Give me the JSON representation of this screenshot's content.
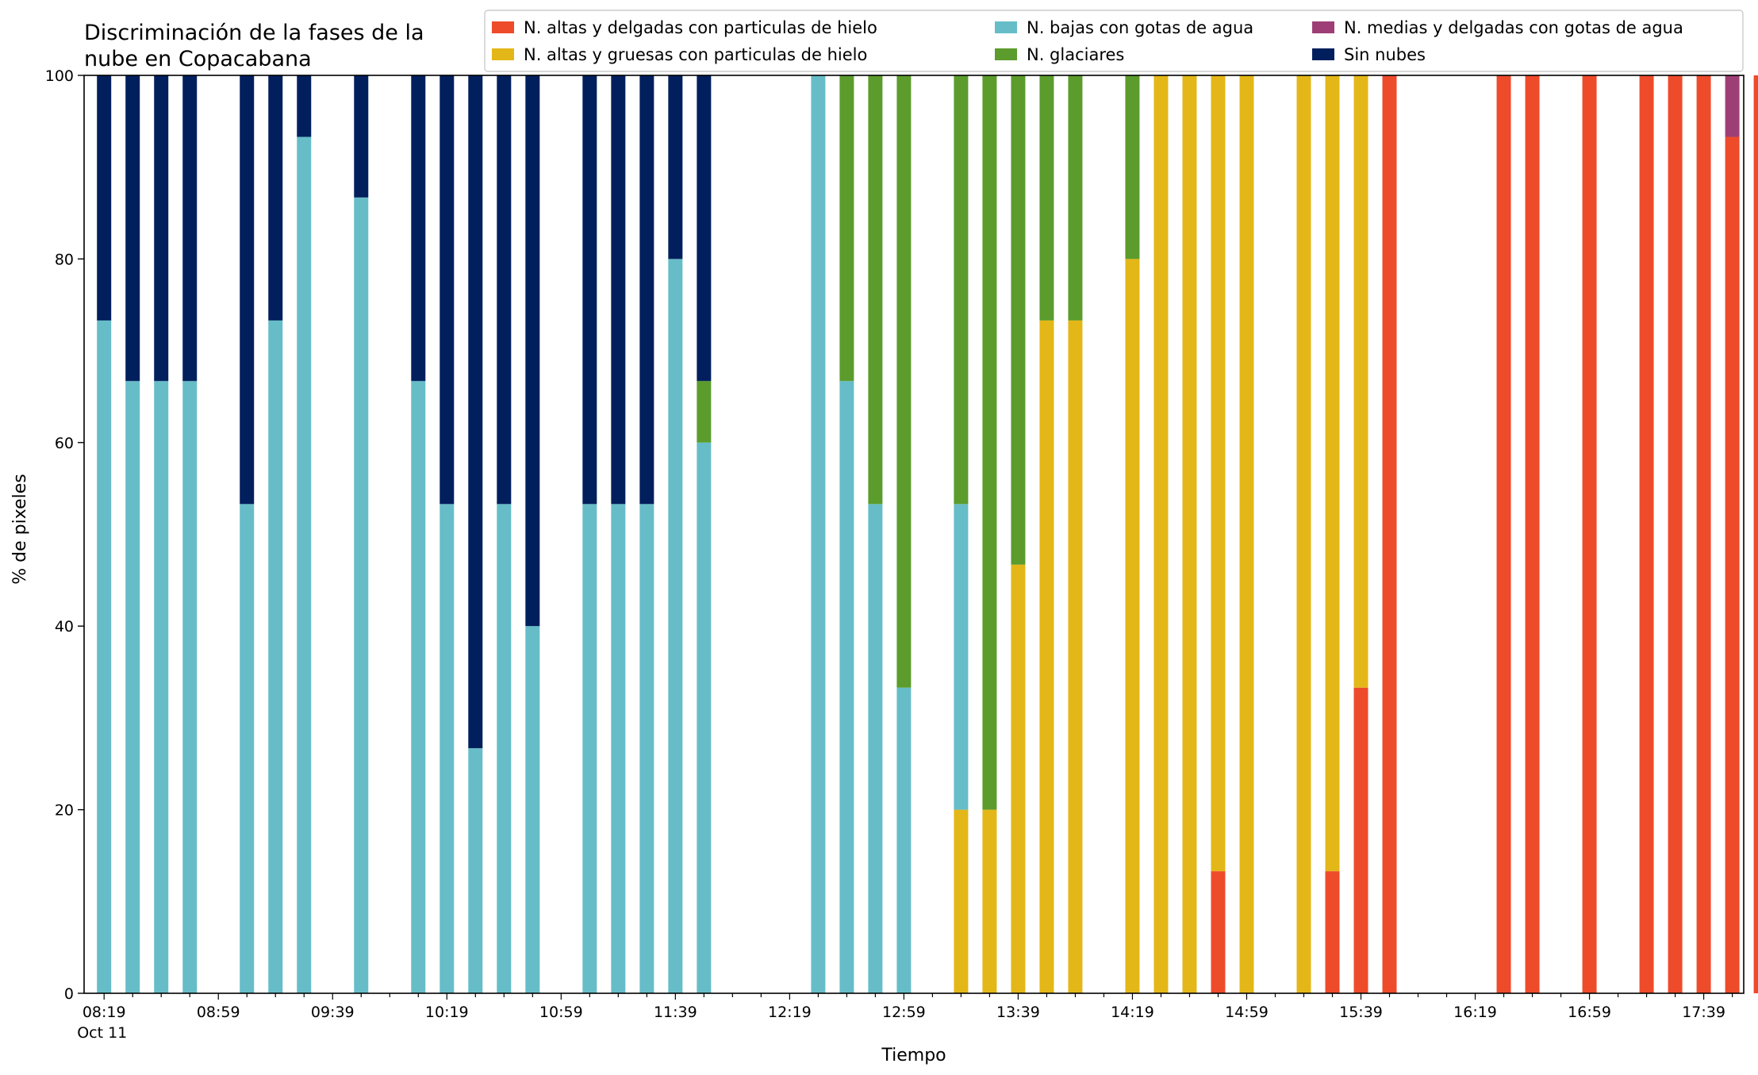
{
  "chart_data": {
    "type": "bar",
    "stacked": true,
    "title_lines": [
      "Discriminación de la fases de la",
      "nube en Copacabana"
    ],
    "xlabel": "Tiempo",
    "ylabel": "% de pixeles",
    "ylim": [
      0,
      100
    ],
    "yticks": [
      0,
      20,
      40,
      60,
      80,
      100
    ],
    "xlim_minutes": [
      492,
      1073
    ],
    "xtick_labels": [
      "08:19",
      "08:59",
      "09:39",
      "10:19",
      "10:59",
      "11:39",
      "12:19",
      "12:59",
      "13:39",
      "14:19",
      "14:59",
      "15:39",
      "16:19",
      "16:59",
      "17:39"
    ],
    "xtick_date_label": "Oct 11",
    "grid": false,
    "legend_position": "top-right",
    "legend_order": [
      "alt_delg",
      "alt_grue",
      "baj_agua",
      "glac",
      "med_agua",
      "sin"
    ],
    "series": [
      {
        "key": "alt_delg",
        "name": "N. altas y delgadas con particulas de hielo",
        "color": "#ee4b2b"
      },
      {
        "key": "alt_grue",
        "name": "N. altas y gruesas con particulas de hielo",
        "color": "#e4b718"
      },
      {
        "key": "baj_agua",
        "name": "N. bajas con gotas de agua",
        "color": "#66bdc8"
      },
      {
        "key": "glac",
        "name": "N. glaciares",
        "color": "#5b9c2c"
      },
      {
        "key": "med_agua",
        "name": "N. medias y delgadas con gotas de agua",
        "color": "#9d3f76"
      },
      {
        "key": "sin",
        "name": "Sin nubes",
        "color": "#021f5d"
      }
    ],
    "bars": [
      {
        "time": "08:19",
        "alt_delg": 0,
        "alt_grue": 0,
        "baj_agua": 73.3,
        "glac": 0,
        "med_agua": 0,
        "sin": 26.7
      },
      {
        "time": "08:29",
        "alt_delg": 0,
        "alt_grue": 0,
        "baj_agua": 66.7,
        "glac": 0,
        "med_agua": 0,
        "sin": 33.3
      },
      {
        "time": "08:39",
        "alt_delg": 0,
        "alt_grue": 0,
        "baj_agua": 66.7,
        "glac": 0,
        "med_agua": 0,
        "sin": 33.3
      },
      {
        "time": "08:49",
        "alt_delg": 0,
        "alt_grue": 0,
        "baj_agua": 66.7,
        "glac": 0,
        "med_agua": 0,
        "sin": 33.3
      },
      {
        "time": "09:09",
        "alt_delg": 0,
        "alt_grue": 0,
        "baj_agua": 53.3,
        "glac": 0,
        "med_agua": 0,
        "sin": 46.7
      },
      {
        "time": "09:19",
        "alt_delg": 0,
        "alt_grue": 0,
        "baj_agua": 73.3,
        "glac": 0,
        "med_agua": 0,
        "sin": 26.7
      },
      {
        "time": "09:29",
        "alt_delg": 0,
        "alt_grue": 0,
        "baj_agua": 93.3,
        "glac": 0,
        "med_agua": 0,
        "sin": 6.7
      },
      {
        "time": "09:49",
        "alt_delg": 0,
        "alt_grue": 0,
        "baj_agua": 86.7,
        "glac": 0,
        "med_agua": 0,
        "sin": 13.3
      },
      {
        "time": "10:09",
        "alt_delg": 0,
        "alt_grue": 0,
        "baj_agua": 66.7,
        "glac": 0,
        "med_agua": 0,
        "sin": 33.3
      },
      {
        "time": "10:19",
        "alt_delg": 0,
        "alt_grue": 0,
        "baj_agua": 53.3,
        "glac": 0,
        "med_agua": 0,
        "sin": 46.7
      },
      {
        "time": "10:29",
        "alt_delg": 0,
        "alt_grue": 0,
        "baj_agua": 26.7,
        "glac": 0,
        "med_agua": 0,
        "sin": 73.3
      },
      {
        "time": "10:39",
        "alt_delg": 0,
        "alt_grue": 0,
        "baj_agua": 53.3,
        "glac": 0,
        "med_agua": 0,
        "sin": 46.7
      },
      {
        "time": "10:49",
        "alt_delg": 0,
        "alt_grue": 0,
        "baj_agua": 40,
        "glac": 0,
        "med_agua": 0,
        "sin": 60
      },
      {
        "time": "11:09",
        "alt_delg": 0,
        "alt_grue": 0,
        "baj_agua": 53.3,
        "glac": 0,
        "med_agua": 0,
        "sin": 46.7
      },
      {
        "time": "11:19",
        "alt_delg": 0,
        "alt_grue": 0,
        "baj_agua": 53.3,
        "glac": 0,
        "med_agua": 0,
        "sin": 46.7
      },
      {
        "time": "11:29",
        "alt_delg": 0,
        "alt_grue": 0,
        "baj_agua": 53.3,
        "glac": 0,
        "med_agua": 0,
        "sin": 46.7
      },
      {
        "time": "11:39",
        "alt_delg": 0,
        "alt_grue": 0,
        "baj_agua": 80,
        "glac": 0,
        "med_agua": 0,
        "sin": 20
      },
      {
        "time": "11:49",
        "alt_delg": 0,
        "alt_grue": 0,
        "baj_agua": 60,
        "glac": 6.7,
        "med_agua": 0,
        "sin": 33.3
      },
      {
        "time": "12:29",
        "alt_delg": 0,
        "alt_grue": 0,
        "baj_agua": 100,
        "glac": 0,
        "med_agua": 0,
        "sin": 0
      },
      {
        "time": "12:39",
        "alt_delg": 0,
        "alt_grue": 0,
        "baj_agua": 66.7,
        "glac": 33.3,
        "med_agua": 0,
        "sin": 0
      },
      {
        "time": "12:49",
        "alt_delg": 0,
        "alt_grue": 0,
        "baj_agua": 53.3,
        "glac": 46.7,
        "med_agua": 0,
        "sin": 0
      },
      {
        "time": "12:59",
        "alt_delg": 0,
        "alt_grue": 0,
        "baj_agua": 33.3,
        "glac": 66.7,
        "med_agua": 0,
        "sin": 0
      },
      {
        "time": "13:19",
        "alt_delg": 0,
        "alt_grue": 20,
        "baj_agua": 33.3,
        "glac": 46.7,
        "med_agua": 0,
        "sin": 0
      },
      {
        "time": "13:29",
        "alt_delg": 0,
        "alt_grue": 20,
        "baj_agua": 0,
        "glac": 80,
        "med_agua": 0,
        "sin": 0
      },
      {
        "time": "13:39",
        "alt_delg": 0,
        "alt_grue": 46.7,
        "baj_agua": 0,
        "glac": 53.3,
        "med_agua": 0,
        "sin": 0
      },
      {
        "time": "13:49",
        "alt_delg": 0,
        "alt_grue": 73.3,
        "baj_agua": 0,
        "glac": 26.7,
        "med_agua": 0,
        "sin": 0
      },
      {
        "time": "13:59",
        "alt_delg": 0,
        "alt_grue": 73.3,
        "baj_agua": 0,
        "glac": 26.7,
        "med_agua": 0,
        "sin": 0
      },
      {
        "time": "14:19",
        "alt_delg": 0,
        "alt_grue": 80,
        "baj_agua": 0,
        "glac": 20,
        "med_agua": 0,
        "sin": 0
      },
      {
        "time": "14:29",
        "alt_delg": 0,
        "alt_grue": 100,
        "baj_agua": 0,
        "glac": 0,
        "med_agua": 0,
        "sin": 0
      },
      {
        "time": "14:39",
        "alt_delg": 0,
        "alt_grue": 100,
        "baj_agua": 0,
        "glac": 0,
        "med_agua": 0,
        "sin": 0
      },
      {
        "time": "14:49",
        "alt_delg": 13.3,
        "alt_grue": 86.7,
        "baj_agua": 0,
        "glac": 0,
        "med_agua": 0,
        "sin": 0
      },
      {
        "time": "14:59",
        "alt_delg": 0,
        "alt_grue": 100,
        "baj_agua": 0,
        "glac": 0,
        "med_agua": 0,
        "sin": 0
      },
      {
        "time": "15:19",
        "alt_delg": 0,
        "alt_grue": 100,
        "baj_agua": 0,
        "glac": 0,
        "med_agua": 0,
        "sin": 0
      },
      {
        "time": "15:29",
        "alt_delg": 13.3,
        "alt_grue": 86.7,
        "baj_agua": 0,
        "glac": 0,
        "med_agua": 0,
        "sin": 0
      },
      {
        "time": "15:39",
        "alt_delg": 33.3,
        "alt_grue": 66.7,
        "baj_agua": 0,
        "glac": 0,
        "med_agua": 0,
        "sin": 0
      },
      {
        "time": "15:49",
        "alt_delg": 100,
        "alt_grue": 0,
        "baj_agua": 0,
        "glac": 0,
        "med_agua": 0,
        "sin": 0
      },
      {
        "time": "16:29",
        "alt_delg": 100,
        "alt_grue": 0,
        "baj_agua": 0,
        "glac": 0,
        "med_agua": 0,
        "sin": 0
      },
      {
        "time": "16:39",
        "alt_delg": 100,
        "alt_grue": 0,
        "baj_agua": 0,
        "glac": 0,
        "med_agua": 0,
        "sin": 0
      },
      {
        "time": "16:59",
        "alt_delg": 100,
        "alt_grue": 0,
        "baj_agua": 0,
        "glac": 0,
        "med_agua": 0,
        "sin": 0
      },
      {
        "time": "17:19",
        "alt_delg": 100,
        "alt_grue": 0,
        "baj_agua": 0,
        "glac": 0,
        "med_agua": 0,
        "sin": 0
      },
      {
        "time": "17:29",
        "alt_delg": 100,
        "alt_grue": 0,
        "baj_agua": 0,
        "glac": 0,
        "med_agua": 0,
        "sin": 0
      },
      {
        "time": "17:39",
        "alt_delg": 100,
        "alt_grue": 0,
        "baj_agua": 0,
        "glac": 0,
        "med_agua": 0,
        "sin": 0
      },
      {
        "time": "17:49",
        "alt_delg": 93.3,
        "alt_grue": 0,
        "baj_agua": 0,
        "glac": 0,
        "med_agua": 6.7,
        "sin": 0
      },
      {
        "time": "17:59",
        "alt_delg": 100,
        "alt_grue": 0,
        "baj_agua": 0,
        "glac": 0,
        "med_agua": 0,
        "sin": 0
      }
    ]
  }
}
